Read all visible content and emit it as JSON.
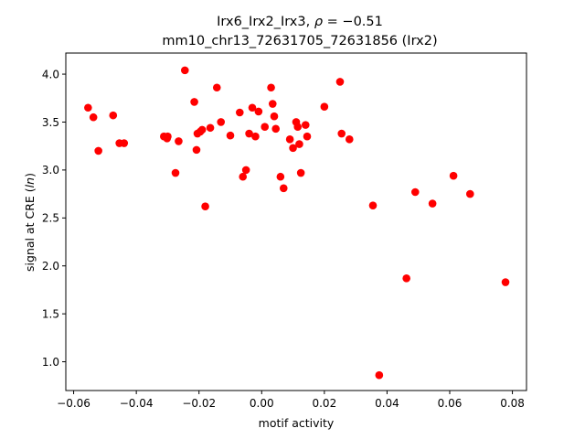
{
  "chart_data": {
    "type": "scatter",
    "title": "Irx6_Irx2_Irx3, ρ = −0.51",
    "title_math": {
      "prefix": "Irx6_Irx2_Irx3, ",
      "rho": "ρ",
      "rest": " = −0.51"
    },
    "subtitle": "mm10_chr13_72631705_72631856 (Irx2)",
    "xlabel": "motif activity",
    "ylabel": "signal at CRE (ln)",
    "ylabel_parts": {
      "pre": "signal at CRE (",
      "italic": "ln",
      "post": ")"
    },
    "xlim": [
      -0.0625,
      0.0845
    ],
    "ylim": [
      0.7,
      4.22
    ],
    "xticks": [
      -0.06,
      -0.04,
      -0.02,
      0.0,
      0.02,
      0.04,
      0.06,
      0.08
    ],
    "xtick_labels": [
      "−0.06",
      "−0.04",
      "−0.02",
      "0.00",
      "0.02",
      "0.04",
      "0.06",
      "0.08"
    ],
    "yticks": [
      1.0,
      1.5,
      2.0,
      2.5,
      3.0,
      3.5,
      4.0
    ],
    "ytick_labels": [
      "1.0",
      "1.5",
      "2.0",
      "2.5",
      "3.0",
      "3.5",
      "4.0"
    ],
    "grid": false,
    "marker_color": "#ff0000",
    "points": [
      {
        "x": -0.0554,
        "y": 3.65
      },
      {
        "x": -0.0537,
        "y": 3.55
      },
      {
        "x": -0.0521,
        "y": 3.2
      },
      {
        "x": -0.0474,
        "y": 3.57
      },
      {
        "x": -0.0454,
        "y": 3.28
      },
      {
        "x": -0.0439,
        "y": 3.28
      },
      {
        "x": -0.0312,
        "y": 3.35
      },
      {
        "x": -0.0302,
        "y": 3.33
      },
      {
        "x": -0.03,
        "y": 3.35
      },
      {
        "x": -0.0275,
        "y": 2.97
      },
      {
        "x": -0.0265,
        "y": 3.3
      },
      {
        "x": -0.0245,
        "y": 4.04
      },
      {
        "x": -0.0215,
        "y": 3.71
      },
      {
        "x": -0.0208,
        "y": 3.21
      },
      {
        "x": -0.0205,
        "y": 3.38
      },
      {
        "x": -0.0196,
        "y": 3.4
      },
      {
        "x": -0.019,
        "y": 3.42
      },
      {
        "x": -0.018,
        "y": 2.62
      },
      {
        "x": -0.0164,
        "y": 3.44
      },
      {
        "x": -0.0143,
        "y": 3.86
      },
      {
        "x": -0.013,
        "y": 3.5
      },
      {
        "x": -0.01,
        "y": 3.36
      },
      {
        "x": -0.007,
        "y": 3.6
      },
      {
        "x": -0.006,
        "y": 2.93
      },
      {
        "x": -0.005,
        "y": 3.0
      },
      {
        "x": -0.004,
        "y": 3.38
      },
      {
        "x": -0.003,
        "y": 3.65
      },
      {
        "x": -0.002,
        "y": 3.35
      },
      {
        "x": -0.001,
        "y": 3.61
      },
      {
        "x": 0.001,
        "y": 3.45
      },
      {
        "x": 0.003,
        "y": 3.86
      },
      {
        "x": 0.0035,
        "y": 3.69
      },
      {
        "x": 0.004,
        "y": 3.56
      },
      {
        "x": 0.0045,
        "y": 3.43
      },
      {
        "x": 0.006,
        "y": 2.93
      },
      {
        "x": 0.007,
        "y": 2.81
      },
      {
        "x": 0.009,
        "y": 3.32
      },
      {
        "x": 0.01,
        "y": 3.23
      },
      {
        "x": 0.011,
        "y": 3.5
      },
      {
        "x": 0.0115,
        "y": 3.45
      },
      {
        "x": 0.012,
        "y": 3.27
      },
      {
        "x": 0.0125,
        "y": 2.97
      },
      {
        "x": 0.014,
        "y": 3.47
      },
      {
        "x": 0.0145,
        "y": 3.35
      },
      {
        "x": 0.02,
        "y": 3.66
      },
      {
        "x": 0.025,
        "y": 3.92
      },
      {
        "x": 0.0255,
        "y": 3.38
      },
      {
        "x": 0.028,
        "y": 3.32
      },
      {
        "x": 0.0355,
        "y": 2.63
      },
      {
        "x": 0.0375,
        "y": 0.86
      },
      {
        "x": 0.0462,
        "y": 1.87
      },
      {
        "x": 0.049,
        "y": 2.77
      },
      {
        "x": 0.0545,
        "y": 2.65
      },
      {
        "x": 0.0612,
        "y": 2.94
      },
      {
        "x": 0.0665,
        "y": 2.75
      },
      {
        "x": 0.0778,
        "y": 1.83
      }
    ]
  }
}
